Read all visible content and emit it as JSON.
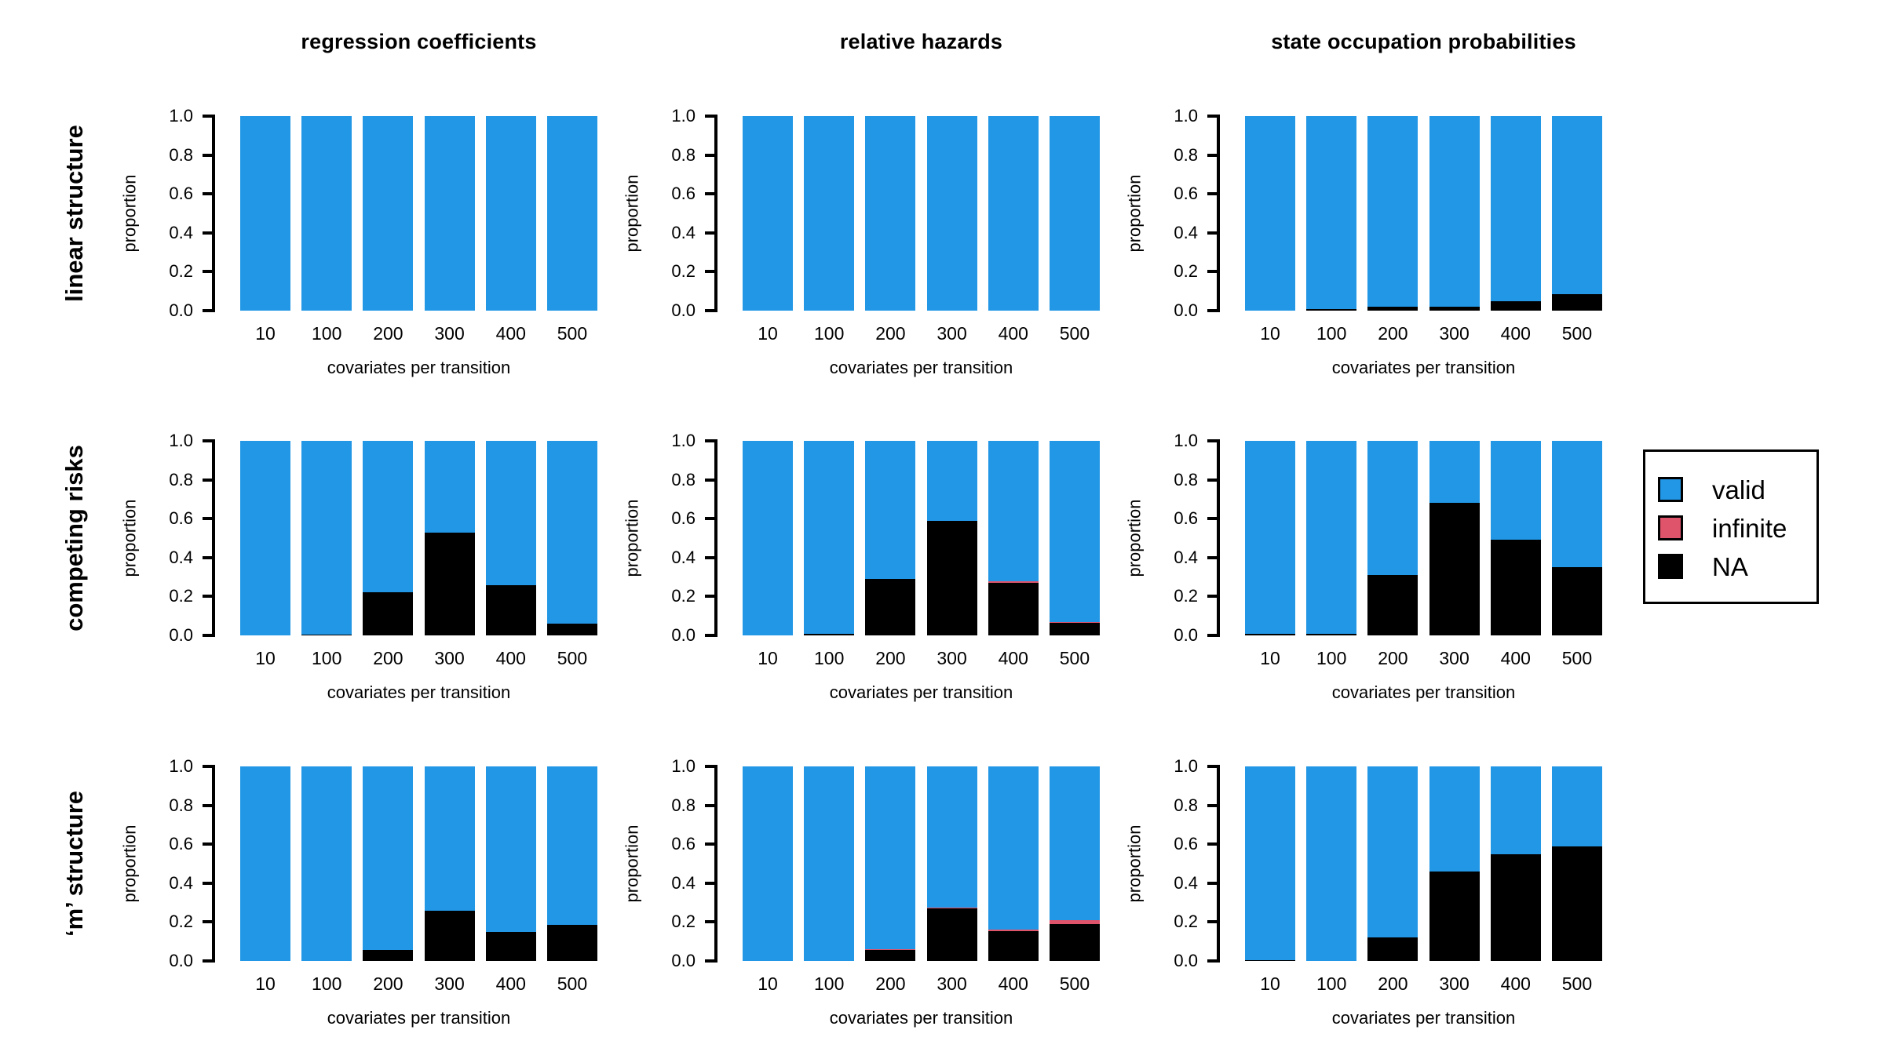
{
  "figure": {
    "background": "#ffffff"
  },
  "legend": {
    "items": [
      {
        "label": "valid",
        "color": "#2297E6"
      },
      {
        "label": "infinite",
        "color": "#DF536B"
      },
      {
        "label": "NA",
        "color": "#000000"
      }
    ]
  },
  "chart_data": {
    "type": "bar",
    "stacked": true,
    "categories": [
      "10",
      "100",
      "200",
      "300",
      "400",
      "500"
    ],
    "col_titles": [
      "regression coefficients",
      "relative hazards",
      "state occupation probabilities"
    ],
    "row_titles": [
      "linear structure",
      "competing risks",
      "‘m’ structure"
    ],
    "xlabel": "covariates per transition",
    "ylabel": "proportion",
    "ylim": [
      0,
      1
    ],
    "yticks": [
      1.0,
      0.8,
      0.6,
      0.4,
      0.2,
      0.0
    ],
    "legend_position": "right",
    "grid_lines": false,
    "series_colors": {
      "valid": "#2297E6",
      "infinite": "#DF536B",
      "NA": "#000000"
    },
    "grid": [
      {
        "row": "linear structure",
        "charts": [
          {
            "col": "regression coefficients",
            "series": {
              "valid": [
                1,
                1,
                1,
                1,
                1,
                1
              ],
              "infinite": [
                0,
                0,
                0,
                0,
                0,
                0
              ],
              "NA": [
                0,
                0,
                0,
                0,
                0,
                0
              ]
            }
          },
          {
            "col": "relative hazards",
            "series": {
              "valid": [
                1,
                1,
                1,
                1,
                1,
                1
              ],
              "infinite": [
                0,
                0,
                0,
                0,
                0,
                0
              ],
              "NA": [
                0,
                0,
                0,
                0,
                0,
                0
              ]
            }
          },
          {
            "col": "state occupation probabilities",
            "series": {
              "valid": [
                1,
                0.99,
                0.98,
                0.98,
                0.95,
                0.915
              ],
              "infinite": [
                0,
                0,
                0,
                0,
                0,
                0
              ],
              "NA": [
                0,
                0.01,
                0.02,
                0.02,
                0.05,
                0.085
              ]
            }
          }
        ]
      },
      {
        "row": "competing risks",
        "charts": [
          {
            "col": "regression coefficients",
            "series": {
              "valid": [
                1,
                0.995,
                0.78,
                0.47,
                0.74,
                0.94
              ],
              "infinite": [
                0,
                0,
                0,
                0,
                0,
                0
              ],
              "NA": [
                0,
                0.005,
                0.22,
                0.53,
                0.26,
                0.06
              ]
            }
          },
          {
            "col": "relative hazards",
            "series": {
              "valid": [
                1,
                0.99,
                0.71,
                0.41,
                0.72,
                0.93
              ],
              "infinite": [
                0,
                0,
                0,
                0,
                0.01,
                0.005
              ],
              "NA": [
                0,
                0.01,
                0.29,
                0.59,
                0.27,
                0.065
              ]
            }
          },
          {
            "col": "state occupation probabilities",
            "series": {
              "valid": [
                0.99,
                0.99,
                0.69,
                0.32,
                0.51,
                0.65
              ],
              "infinite": [
                0,
                0,
                0,
                0,
                0,
                0
              ],
              "NA": [
                0.01,
                0.01,
                0.31,
                0.68,
                0.49,
                0.35
              ]
            }
          }
        ]
      },
      {
        "row": "‘m’ structure",
        "charts": [
          {
            "col": "regression coefficients",
            "series": {
              "valid": [
                1,
                1,
                0.945,
                0.74,
                0.85,
                0.815
              ],
              "infinite": [
                0,
                0,
                0,
                0,
                0,
                0
              ],
              "NA": [
                0,
                0,
                0.055,
                0.26,
                0.15,
                0.185
              ]
            }
          },
          {
            "col": "relative hazards",
            "series": {
              "valid": [
                1,
                1,
                0.94,
                0.725,
                0.84,
                0.79
              ],
              "infinite": [
                0,
                0,
                0.005,
                0.005,
                0.005,
                0.02
              ],
              "NA": [
                0,
                0,
                0.055,
                0.27,
                0.155,
                0.19
              ]
            }
          },
          {
            "col": "state occupation probabilities",
            "series": {
              "valid": [
                0.995,
                1,
                0.88,
                0.54,
                0.45,
                0.41
              ],
              "infinite": [
                0,
                0,
                0,
                0,
                0,
                0
              ],
              "NA": [
                0.005,
                0,
                0.12,
                0.46,
                0.55,
                0.59
              ]
            }
          }
        ]
      }
    ]
  }
}
